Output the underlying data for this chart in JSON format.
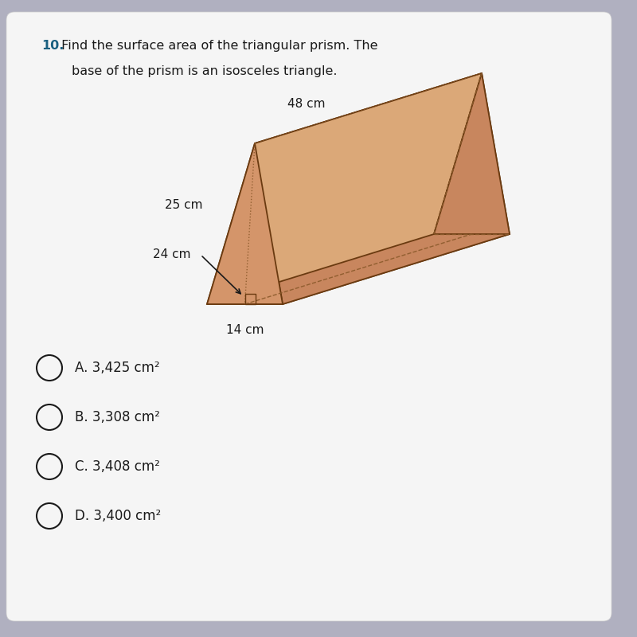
{
  "title_number": "10.",
  "title_text": " Find the surface area of the triangular prism. The",
  "title_text2": "base of the prism is an isosceles triangle.",
  "dim_48": "48 cm",
  "dim_25": "25 cm",
  "dim_24": "24 cm",
  "dim_14": "14 cm",
  "choices": [
    "A. 3,425 cm²",
    "B. 3,308 cm²",
    "C. 3,408 cm²",
    "D. 3,400 cm²"
  ],
  "outer_bg": "#b0b0c0",
  "panel_bg": "#f5f5f5",
  "prism_left_face": "#d4956a",
  "prism_top_face": "#dba878",
  "prism_right_face": "#c8865e",
  "prism_bottom_face": "#b87848",
  "edge_color": "#6a3a10",
  "dash_color": "#8b5a2b",
  "title_color": "#1a6080",
  "text_color": "#1a1a1a",
  "choice_color": "#1a1a1a"
}
